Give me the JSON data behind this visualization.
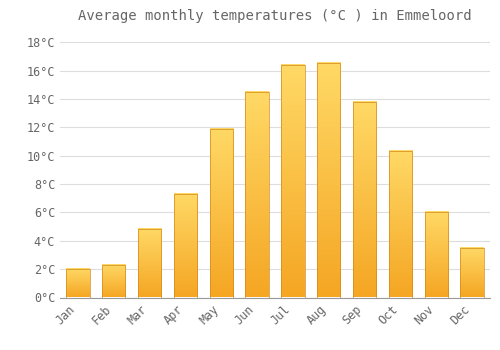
{
  "title": "Average monthly temperatures (°C ) in Emmeloord",
  "months": [
    "Jan",
    "Feb",
    "Mar",
    "Apr",
    "May",
    "Jun",
    "Jul",
    "Aug",
    "Sep",
    "Oct",
    "Nov",
    "Dec"
  ],
  "temperatures": [
    2.0,
    2.3,
    4.8,
    7.3,
    11.9,
    14.5,
    16.4,
    16.5,
    13.8,
    10.3,
    6.0,
    3.5
  ],
  "bar_color_bottom": "#F5A623",
  "bar_color_top": "#FFD966",
  "bar_edge_color": "#D4881A",
  "background_color": "#FFFFFF",
  "grid_color": "#DDDDDD",
  "text_color": "#666666",
  "ylim": [
    0,
    19
  ],
  "yticks": [
    0,
    2,
    4,
    6,
    8,
    10,
    12,
    14,
    16,
    18
  ],
  "ytick_labels": [
    "0°C",
    "2°C",
    "4°C",
    "6°C",
    "8°C",
    "10°C",
    "12°C",
    "14°C",
    "16°C",
    "18°C"
  ],
  "title_fontsize": 10,
  "tick_fontsize": 8.5,
  "bar_width": 0.65
}
